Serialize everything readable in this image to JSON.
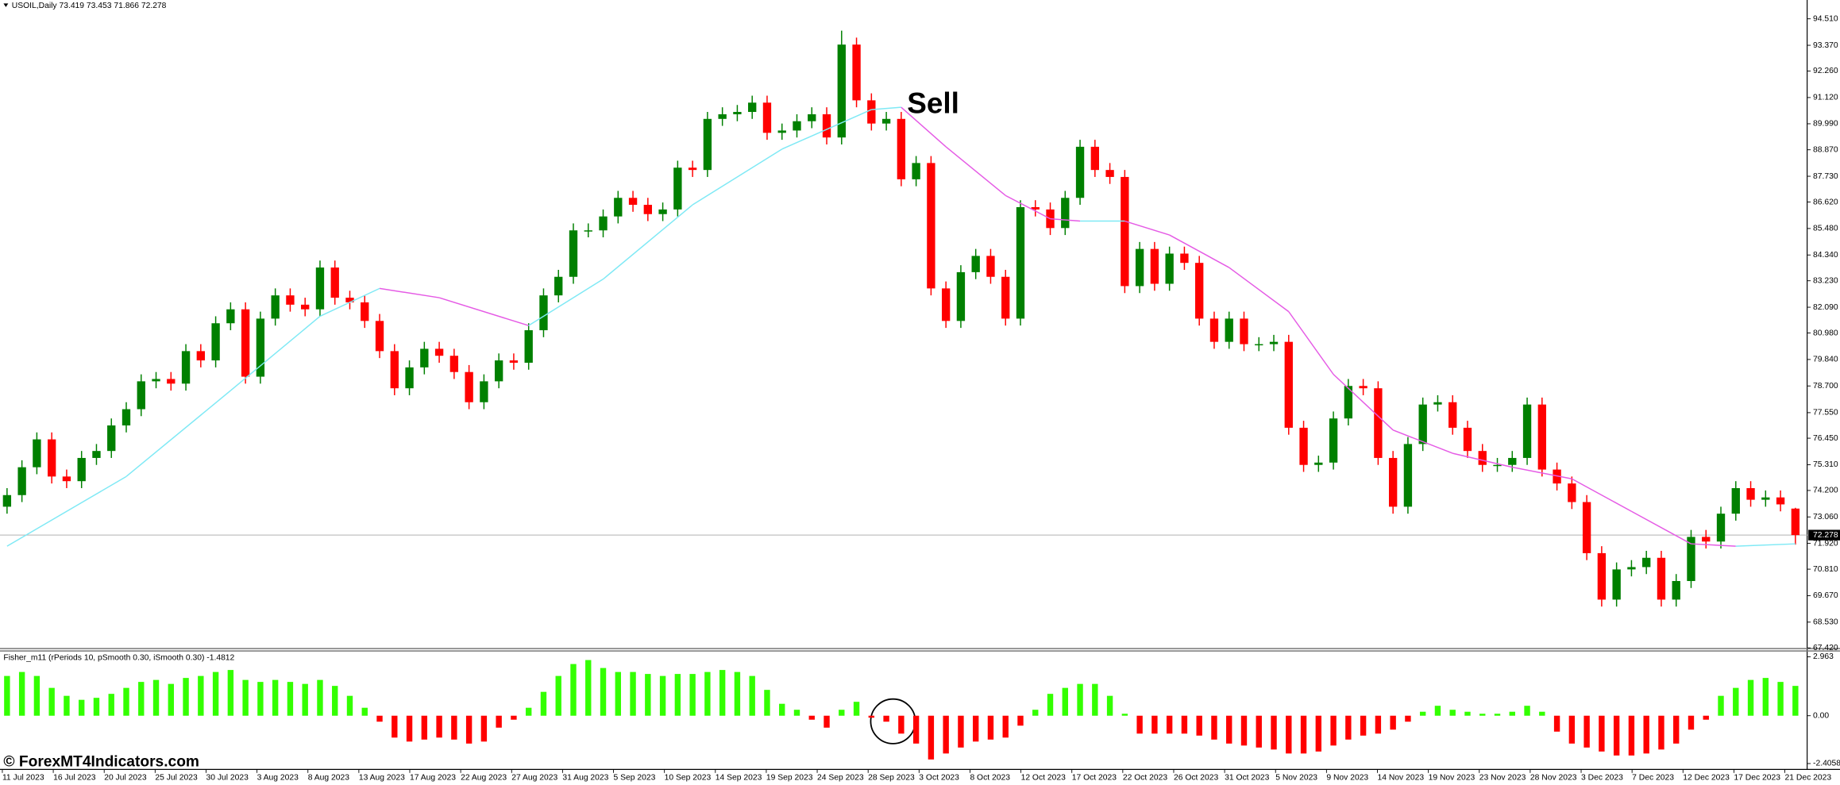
{
  "header": "USOIL,Daily  73.419 73.453 71.866 72.278",
  "watermark": "© ForexMT4Indicators.com",
  "chart_data": [
    {
      "type": "candlestick",
      "annotation": "Sell",
      "up_color": "#008000",
      "down_color": "#ff0000",
      "open": [
        73.5,
        74.0,
        75.2,
        76.4,
        74.8,
        74.6,
        75.6,
        75.9,
        77.0,
        77.7,
        78.9,
        79.0,
        78.8,
        80.2,
        79.8,
        81.4,
        82.0,
        79.1,
        81.6,
        82.6,
        82.2,
        82.0,
        83.8,
        82.5,
        82.3,
        81.5,
        80.2,
        78.6,
        79.5,
        80.3,
        80.0,
        79.3,
        78.0,
        78.9,
        79.8,
        79.7,
        81.1,
        82.6,
        83.4,
        85.4,
        85.4,
        86.0,
        86.8,
        86.5,
        86.1,
        86.3,
        88.1,
        88.0,
        90.2,
        90.4,
        90.5,
        90.9,
        89.6,
        89.7,
        90.1,
        90.4,
        89.4,
        93.4,
        91.0,
        90.0,
        90.2,
        87.6,
        88.3,
        82.9,
        81.5,
        83.6,
        84.3,
        83.4,
        81.6,
        86.4,
        86.3,
        85.5,
        86.8,
        89.0,
        88.0,
        87.7,
        83.0,
        84.6,
        83.1,
        84.4,
        84.0,
        81.6,
        80.6,
        81.6,
        80.5,
        80.5,
        80.6,
        76.9,
        75.3,
        75.4,
        77.3,
        78.7,
        78.6,
        75.6,
        73.5,
        76.2,
        77.9,
        78.0,
        76.9,
        75.9,
        75.3,
        75.3,
        75.6,
        77.9,
        75.1,
        74.5,
        73.7,
        71.5,
        69.5,
        70.8,
        70.9,
        71.3,
        69.5,
        70.3,
        72.2,
        72.0,
        73.2,
        74.3,
        73.8,
        73.9,
        73.419
      ],
      "high": [
        74.3,
        75.5,
        76.7,
        76.7,
        75.1,
        75.9,
        76.2,
        77.3,
        78.0,
        79.2,
        79.3,
        79.3,
        80.5,
        80.5,
        81.7,
        82.3,
        82.3,
        81.9,
        82.9,
        82.9,
        82.5,
        84.1,
        84.1,
        82.8,
        82.6,
        81.8,
        80.5,
        79.8,
        80.6,
        80.6,
        80.3,
        79.6,
        79.2,
        80.1,
        80.1,
        81.4,
        82.9,
        83.7,
        85.7,
        85.7,
        86.3,
        87.1,
        87.1,
        86.8,
        86.6,
        88.4,
        88.4,
        90.5,
        90.7,
        90.8,
        91.2,
        91.2,
        90.0,
        90.4,
        90.7,
        90.7,
        94.0,
        93.7,
        91.3,
        90.5,
        90.5,
        88.6,
        88.6,
        83.2,
        83.9,
        84.6,
        84.6,
        83.7,
        86.7,
        86.7,
        86.6,
        87.1,
        89.3,
        89.3,
        88.3,
        88.0,
        84.9,
        84.9,
        84.7,
        84.7,
        84.3,
        81.9,
        81.9,
        81.9,
        80.8,
        80.9,
        80.9,
        77.2,
        75.7,
        77.6,
        79.0,
        79.0,
        78.9,
        75.9,
        76.5,
        78.2,
        78.3,
        78.3,
        77.2,
        76.2,
        75.6,
        75.9,
        78.2,
        78.2,
        75.4,
        74.8,
        74.0,
        71.8,
        71.1,
        71.2,
        71.6,
        71.6,
        70.6,
        72.5,
        72.5,
        73.5,
        74.6,
        74.6,
        74.2,
        74.2,
        73.453
      ],
      "low": [
        73.2,
        73.7,
        74.9,
        74.5,
        74.3,
        74.3,
        75.3,
        75.6,
        76.7,
        77.4,
        78.6,
        78.5,
        78.5,
        79.5,
        79.5,
        81.1,
        78.8,
        78.8,
        81.3,
        81.9,
        81.7,
        81.7,
        82.2,
        82.0,
        81.2,
        79.9,
        78.3,
        78.3,
        79.2,
        79.7,
        79.0,
        77.7,
        77.7,
        78.6,
        79.4,
        79.4,
        80.8,
        82.3,
        83.1,
        85.1,
        85.1,
        85.7,
        86.2,
        85.8,
        85.8,
        86.0,
        87.7,
        87.7,
        89.9,
        90.1,
        90.2,
        89.3,
        89.3,
        89.4,
        89.8,
        89.1,
        89.1,
        90.7,
        89.7,
        89.7,
        87.3,
        87.3,
        82.6,
        81.2,
        81.2,
        83.3,
        83.1,
        81.3,
        81.3,
        86.0,
        85.2,
        85.2,
        86.5,
        87.7,
        87.4,
        82.7,
        82.7,
        82.8,
        82.8,
        83.7,
        81.3,
        80.3,
        80.3,
        80.2,
        80.2,
        80.2,
        76.6,
        75.0,
        75.0,
        75.1,
        77.0,
        78.3,
        75.3,
        73.2,
        73.2,
        75.9,
        77.6,
        76.6,
        75.6,
        75.0,
        75.0,
        75.0,
        75.3,
        74.8,
        74.2,
        73.4,
        71.2,
        69.2,
        69.2,
        70.5,
        70.6,
        69.2,
        69.2,
        70.0,
        71.7,
        71.7,
        72.9,
        73.5,
        73.5,
        73.3,
        71.866
      ],
      "close": [
        74.0,
        75.2,
        76.4,
        74.8,
        74.6,
        75.6,
        75.9,
        77.0,
        77.7,
        78.9,
        79.0,
        78.8,
        80.2,
        79.8,
        81.4,
        82.0,
        79.1,
        81.6,
        82.6,
        82.2,
        82.0,
        83.8,
        82.5,
        82.3,
        81.5,
        80.2,
        78.6,
        79.5,
        80.3,
        80.0,
        79.3,
        78.0,
        78.9,
        79.8,
        79.7,
        81.1,
        82.6,
        83.4,
        85.4,
        85.4,
        86.0,
        86.8,
        86.5,
        86.1,
        86.3,
        88.1,
        88.0,
        90.2,
        90.4,
        90.5,
        90.9,
        89.6,
        89.7,
        90.1,
        90.4,
        89.4,
        93.4,
        91.0,
        90.0,
        90.2,
        87.6,
        88.3,
        82.9,
        81.5,
        83.6,
        84.3,
        83.4,
        81.6,
        86.4,
        86.3,
        85.5,
        86.8,
        89.0,
        88.0,
        87.7,
        83.0,
        84.6,
        83.1,
        84.4,
        84.0,
        81.6,
        80.6,
        81.6,
        80.5,
        80.5,
        80.6,
        76.9,
        75.3,
        75.4,
        77.3,
        78.7,
        78.6,
        75.6,
        73.5,
        76.2,
        77.9,
        78.0,
        76.9,
        75.9,
        75.3,
        75.3,
        75.6,
        77.9,
        75.1,
        74.5,
        73.7,
        71.5,
        69.5,
        70.8,
        70.9,
        71.3,
        69.5,
        70.3,
        72.2,
        72.0,
        73.2,
        74.3,
        73.8,
        73.9,
        73.6,
        72.278
      ],
      "ma": {
        "up_color": "#7fe9f5",
        "down_color": "#e55be5",
        "x": [
          0,
          8,
          15,
          21,
          25,
          29,
          35,
          40,
          46,
          52,
          58,
          60,
          63,
          67,
          70,
          72,
          75,
          78,
          82,
          86,
          89,
          93,
          97,
          101,
          105,
          109,
          113,
          116,
          120
        ],
        "values": [
          71.8,
          74.8,
          78.5,
          81.7,
          82.9,
          82.5,
          81.3,
          83.3,
          86.5,
          88.9,
          90.6,
          90.7,
          89.0,
          86.9,
          85.9,
          85.8,
          85.8,
          85.2,
          83.8,
          81.9,
          79.2,
          76.8,
          75.8,
          75.2,
          74.7,
          73.3,
          71.9,
          71.8,
          71.9
        ]
      },
      "last_price": 72.278,
      "ylim": [
        67.39,
        95.32
      ],
      "yticks": [
        {
          "value": 94.51,
          "label": "94.510"
        },
        {
          "value": 93.37,
          "label": "93.370"
        },
        {
          "value": 92.26,
          "label": "92.260"
        },
        {
          "value": 91.12,
          "label": "91.120"
        },
        {
          "value": 89.99,
          "label": "89.990"
        },
        {
          "value": 88.87,
          "label": "88.870"
        },
        {
          "value": 87.73,
          "label": "87.730"
        },
        {
          "value": 86.62,
          "label": "86.620"
        },
        {
          "value": 85.48,
          "label": "85.480"
        },
        {
          "value": 84.34,
          "label": "84.340"
        },
        {
          "value": 83.23,
          "label": "83.230"
        },
        {
          "value": 82.09,
          "label": "82.090"
        },
        {
          "value": 80.98,
          "label": "80.980"
        },
        {
          "value": 79.84,
          "label": "79.840"
        },
        {
          "value": 78.7,
          "label": "78.700"
        },
        {
          "value": 77.55,
          "label": "77.550"
        },
        {
          "value": 76.45,
          "label": "76.450"
        },
        {
          "value": 75.31,
          "label": "75.310"
        },
        {
          "value": 74.2,
          "label": "74.200"
        },
        {
          "value": 73.06,
          "label": "73.060"
        },
        {
          "value": 71.92,
          "label": "71.920"
        },
        {
          "value": 70.81,
          "label": "70.810"
        },
        {
          "value": 69.67,
          "label": "69.670"
        },
        {
          "value": 68.53,
          "label": "68.530"
        },
        {
          "value": 67.42,
          "label": "67.420"
        }
      ],
      "date_labels": [
        "11 Jul 2023",
        "16 Jul 2023",
        "20 Jul 2023",
        "25 Jul 2023",
        "30 Jul 2023",
        "3 Aug 2023",
        "8 Aug 2023",
        "13 Aug 2023",
        "17 Aug 2023",
        "22 Aug 2023",
        "27 Aug 2023",
        "31 Aug 2023",
        "5 Sep 2023",
        "10 Sep 2023",
        "14 Sep 2023",
        "19 Sep 2023",
        "24 Sep 2023",
        "28 Sep 2023",
        "3 Oct 2023",
        "8 Oct 2023",
        "12 Oct 2023",
        "17 Oct 2023",
        "22 Oct 2023",
        "26 Oct 2023",
        "31 Oct 2023",
        "5 Nov 2023",
        "9 Nov 2023",
        "14 Nov 2023",
        "19 Nov 2023",
        "23 Nov 2023",
        "28 Nov 2023",
        "3 Dec 2023",
        "7 Dec 2023",
        "12 Dec 2023",
        "17 Dec 2023",
        "21 Dec 2023"
      ]
    },
    {
      "type": "histogram",
      "title": "Fisher_m11  (rPeriods 10, pSmooth 0.30, iSmooth 0.30)  -1.4812",
      "pos_color": "#33ff00",
      "neg_color": "#ff0000",
      "values": [
        2.0,
        2.2,
        2.0,
        1.4,
        1.0,
        0.8,
        0.9,
        1.1,
        1.4,
        1.7,
        1.8,
        1.6,
        1.9,
        2.0,
        2.2,
        2.3,
        1.8,
        1.7,
        1.8,
        1.7,
        1.6,
        1.8,
        1.5,
        1.0,
        0.4,
        -0.3,
        -1.1,
        -1.3,
        -1.2,
        -1.1,
        -1.2,
        -1.4,
        -1.3,
        -0.6,
        -0.2,
        0.4,
        1.2,
        2.0,
        2.6,
        2.8,
        2.4,
        2.2,
        2.2,
        2.1,
        2.0,
        2.1,
        2.1,
        2.2,
        2.3,
        2.2,
        2.0,
        1.3,
        0.6,
        0.3,
        -0.2,
        -0.6,
        0.3,
        0.7,
        -0.1,
        -0.3,
        -0.9,
        -1.4,
        -2.2,
        -1.9,
        -1.6,
        -1.3,
        -1.2,
        -1.1,
        -0.5,
        0.3,
        1.1,
        1.4,
        1.6,
        1.6,
        1.0,
        0.1,
        -0.9,
        -0.9,
        -0.9,
        -0.9,
        -1.0,
        -1.2,
        -1.4,
        -1.5,
        -1.6,
        -1.7,
        -1.9,
        -1.9,
        -1.8,
        -1.5,
        -1.2,
        -1.0,
        -0.9,
        -0.7,
        -0.3,
        0.2,
        0.5,
        0.3,
        0.2,
        0.1,
        0.1,
        0.2,
        0.5,
        0.2,
        -0.8,
        -1.4,
        -1.6,
        -1.8,
        -2.0,
        -2.0,
        -1.9,
        -1.7,
        -1.4,
        -0.7,
        -0.2,
        1.0,
        1.4,
        1.8,
        1.9,
        1.7,
        1.5
      ],
      "ylim": [
        -2.7,
        3.199
      ],
      "yticks": [
        2.963,
        {
          "value": 0,
          "label": "0.00"
        },
        -2.4058
      ]
    }
  ]
}
